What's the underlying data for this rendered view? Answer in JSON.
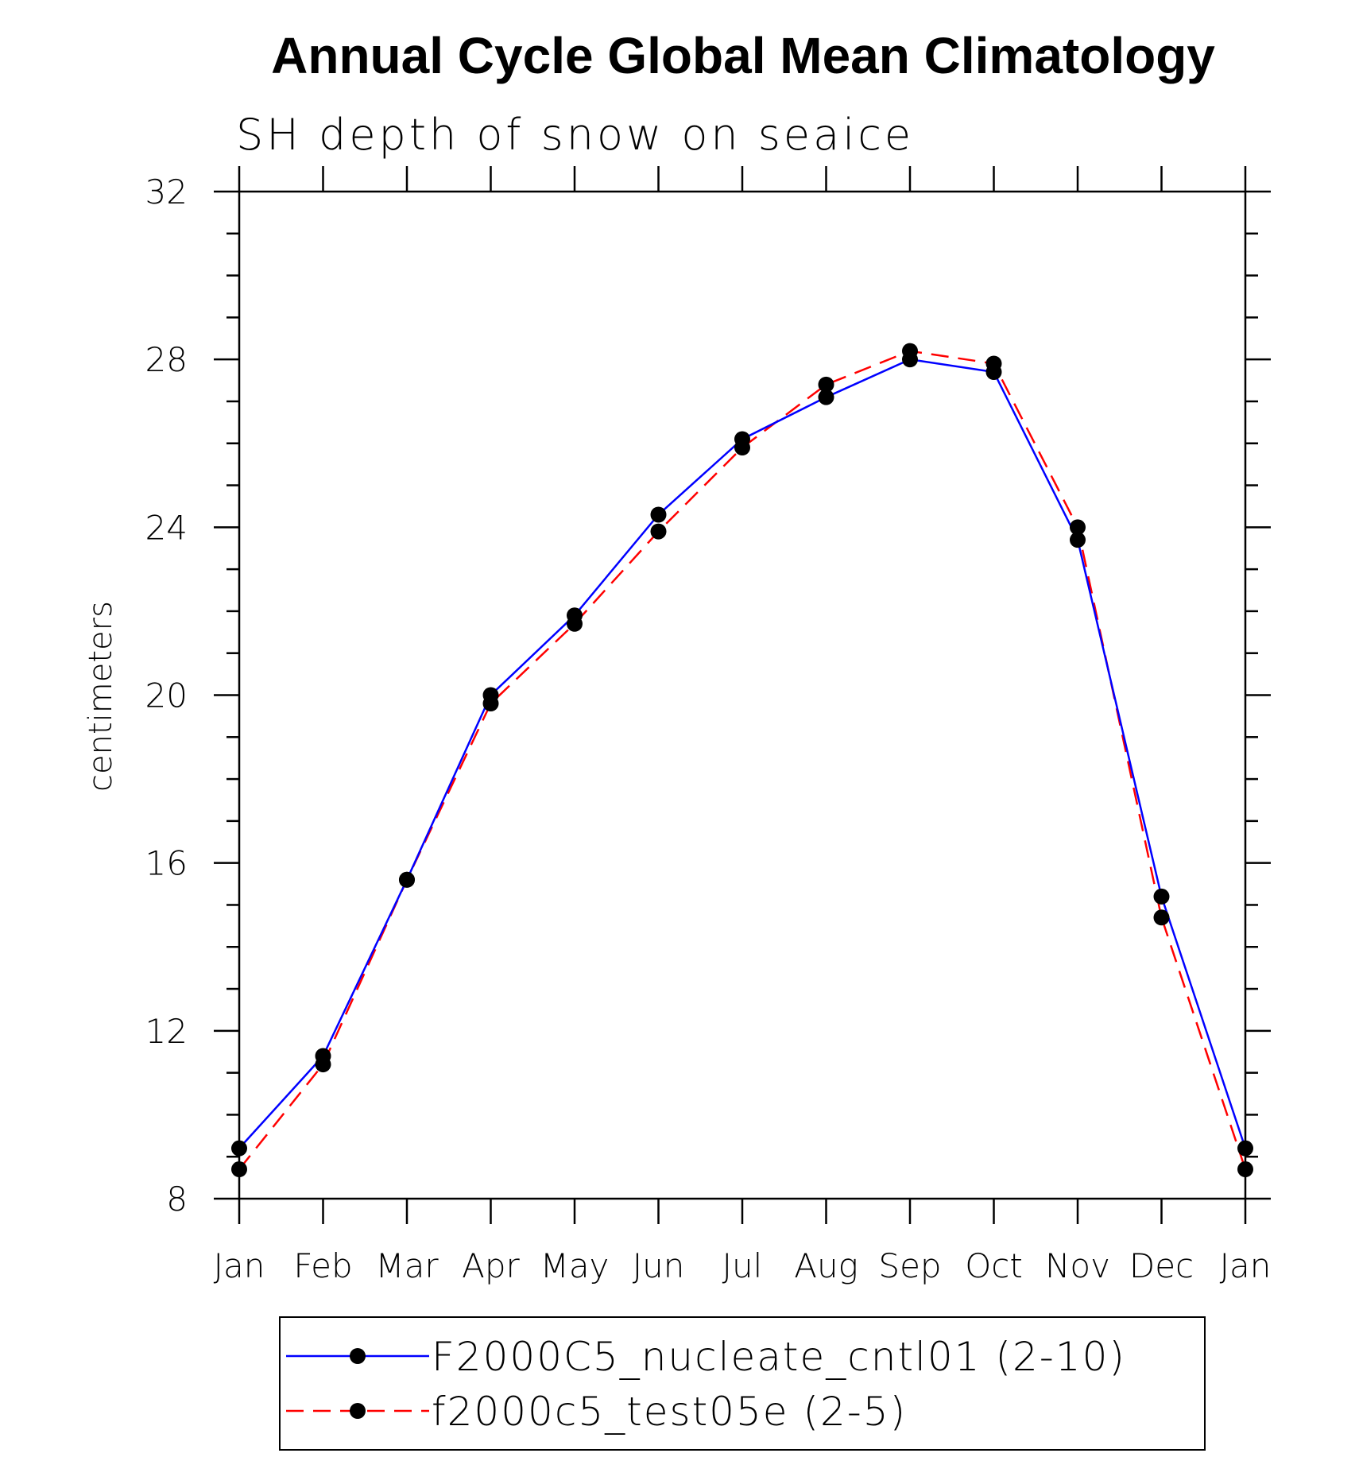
{
  "chart_data": {
    "type": "line",
    "title": "Annual Cycle Global Mean Climatology",
    "subtitle": "SH depth of snow on seaice",
    "xlabel": "",
    "ylabel": "centimeters",
    "categories": [
      "Jan",
      "Feb",
      "Mar",
      "Apr",
      "May",
      "Jun",
      "Jul",
      "Aug",
      "Sep",
      "Oct",
      "Nov",
      "Dec",
      "Jan"
    ],
    "ylim": [
      8,
      32
    ],
    "yticks": [
      8,
      12,
      16,
      20,
      24,
      28,
      32
    ],
    "grid": false,
    "legend_position": "bottom",
    "series": [
      {
        "name": "F2000C5_nucleate_cntl01 (2-10)",
        "color": "#0000ff",
        "dash": "solid",
        "values": [
          9.2,
          11.4,
          15.6,
          20.0,
          21.9,
          24.3,
          26.1,
          27.1,
          28.0,
          27.7,
          23.7,
          15.2,
          9.2
        ]
      },
      {
        "name": "f2000c5_test05e (2-5)",
        "color": "#ff0000",
        "dash": "dashed",
        "values": [
          8.7,
          11.2,
          15.6,
          19.8,
          21.7,
          23.9,
          25.9,
          27.4,
          28.2,
          27.9,
          24.0,
          14.7,
          8.7
        ]
      }
    ]
  }
}
